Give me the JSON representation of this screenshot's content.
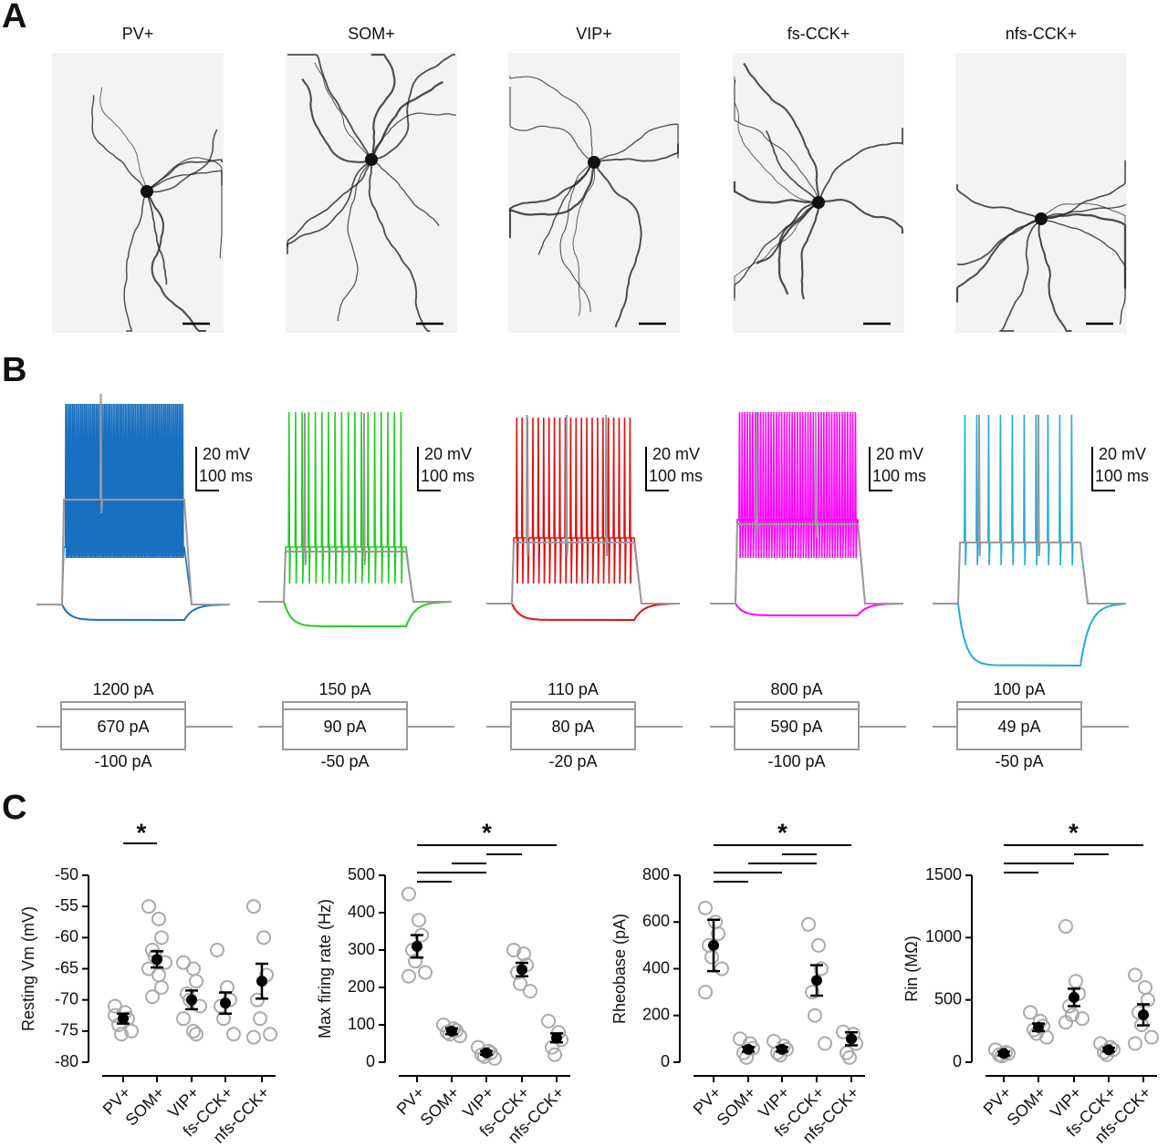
{
  "panel_labels": [
    "A",
    "B",
    "C"
  ],
  "panel_a": {
    "cell_types": [
      "PV+",
      "SOM+",
      "VIP+",
      "fs-CCK+",
      "nfs-CCK+"
    ],
    "colors": [
      "#1f6fb8",
      "#22a83a",
      "#e0201f",
      "#e61ecf",
      "#20b0e0"
    ]
  },
  "panel_b": {
    "scale_voltage": "20 mV",
    "scale_time": "100 ms",
    "trace_colors": [
      "#1a6fc0",
      "#22cc22",
      "#e01010",
      "#ff00ff",
      "#22aadd"
    ],
    "steps": [
      {
        "max": "1200 pA",
        "rheobase": "670 pA",
        "min": "-100 pA"
      },
      {
        "max": "150 pA",
        "rheobase": "90 pA",
        "min": "-50 pA"
      },
      {
        "max": "110 pA",
        "rheobase": "80 pA",
        "min": "-20 pA"
      },
      {
        "max": "800 pA",
        "rheobase": "590 pA",
        "min": "-100 pA"
      },
      {
        "max": "100 pA",
        "rheobase": "49 pA",
        "min": "-50 pA"
      }
    ]
  },
  "chart_data": [
    {
      "type": "scatter",
      "y_label": "Resting Vm (mV)",
      "annotation": "*",
      "categories": [
        "PV+",
        "SOM+",
        "VIP+",
        "fs-CCK+",
        "nfs-CCK+"
      ],
      "category_colors": [
        "#1f6fb8",
        "#22a83a",
        "#e0201f",
        "#e61ecf",
        "#20b0e0"
      ],
      "means": [
        -73,
        -63.5,
        -70,
        -70.5,
        -67
      ],
      "errors": [
        0.8,
        1.3,
        1.5,
        1.7,
        2.8
      ],
      "points": [
        [
          -71,
          -72,
          -73,
          -74,
          -75.5,
          -75,
          -72.5
        ],
        [
          -55,
          -57,
          -60,
          -62,
          -63,
          -64,
          -65,
          -66,
          -68,
          -69.5
        ],
        [
          -64,
          -65,
          -67,
          -69,
          -70,
          -71,
          -73,
          -75,
          -75.5
        ],
        [
          -62,
          -68,
          -70,
          -71,
          -73,
          -75.5
        ],
        [
          -55,
          -60,
          -66,
          -70,
          -73,
          -75.5,
          -76
        ]
      ],
      "ylim": [
        -80,
        -50
      ],
      "yticks": [
        -80,
        -75,
        -70,
        -65,
        -60,
        -55,
        -50
      ]
    },
    {
      "type": "scatter",
      "y_label": "Max firing rate (Hz)",
      "annotation": "*",
      "categories": [
        "PV+",
        "SOM+",
        "VIP+",
        "fs-CCK+",
        "nfs-CCK+"
      ],
      "category_colors": [
        "#1f6fb8",
        "#22a83a",
        "#e0201f",
        "#e61ecf",
        "#20b0e0"
      ],
      "means": [
        310,
        83,
        25,
        248,
        65
      ],
      "errors": [
        30,
        8,
        5,
        18,
        12
      ],
      "points": [
        [
          450,
          380,
          340,
          300,
          270,
          240,
          230
        ],
        [
          100,
          90,
          85,
          80,
          75,
          70
        ],
        [
          40,
          30,
          25,
          20,
          15,
          10
        ],
        [
          300,
          290,
          260,
          240,
          210,
          190
        ],
        [
          110,
          80,
          60,
          40,
          20
        ]
      ],
      "ylim": [
        0,
        500
      ],
      "yticks": [
        0,
        100,
        200,
        300,
        400,
        500
      ]
    },
    {
      "type": "scatter",
      "y_label": "Rheobase (pA)",
      "annotation": "*",
      "categories": [
        "PV+",
        "SOM+",
        "VIP+",
        "fs-CCK+",
        "nfs-CCK+"
      ],
      "category_colors": [
        "#1f6fb8",
        "#22a83a",
        "#e0201f",
        "#e61ecf",
        "#20b0e0"
      ],
      "means": [
        500,
        55,
        55,
        350,
        100
      ],
      "errors": [
        110,
        10,
        10,
        65,
        28
      ],
      "points": [
        [
          660,
          600,
          550,
          500,
          450,
          400,
          300
        ],
        [
          100,
          80,
          60,
          40,
          20
        ],
        [
          90,
          70,
          55,
          40,
          30
        ],
        [
          590,
          500,
          400,
          300,
          200,
          80
        ],
        [
          130,
          120,
          80,
          40,
          20
        ]
      ],
      "ylim": [
        0,
        800
      ],
      "yticks": [
        0,
        200,
        400,
        600,
        800
      ]
    },
    {
      "type": "scatter",
      "y_label": "Rin (MΩ)",
      "annotation": "*",
      "categories": [
        "PV+",
        "SOM+",
        "VIP+",
        "fs-CCK+",
        "nfs-CCK+"
      ],
      "category_colors": [
        "#1f6fb8",
        "#22a83a",
        "#e0201f",
        "#e61ecf",
        "#20b0e0"
      ],
      "means": [
        70,
        280,
        520,
        100,
        380
      ],
      "errors": [
        15,
        30,
        70,
        15,
        85
      ],
      "points": [
        [
          100,
          80,
          70,
          60,
          50
        ],
        [
          400,
          330,
          290,
          260,
          230,
          200
        ],
        [
          1090,
          650,
          550,
          450,
          380,
          350,
          320
        ],
        [
          150,
          120,
          100,
          80,
          60
        ],
        [
          700,
          600,
          500,
          400,
          300,
          200,
          150
        ]
      ],
      "ylim": [
        0,
        1500
      ],
      "yticks": [
        0,
        500,
        1000,
        1500
      ]
    }
  ]
}
